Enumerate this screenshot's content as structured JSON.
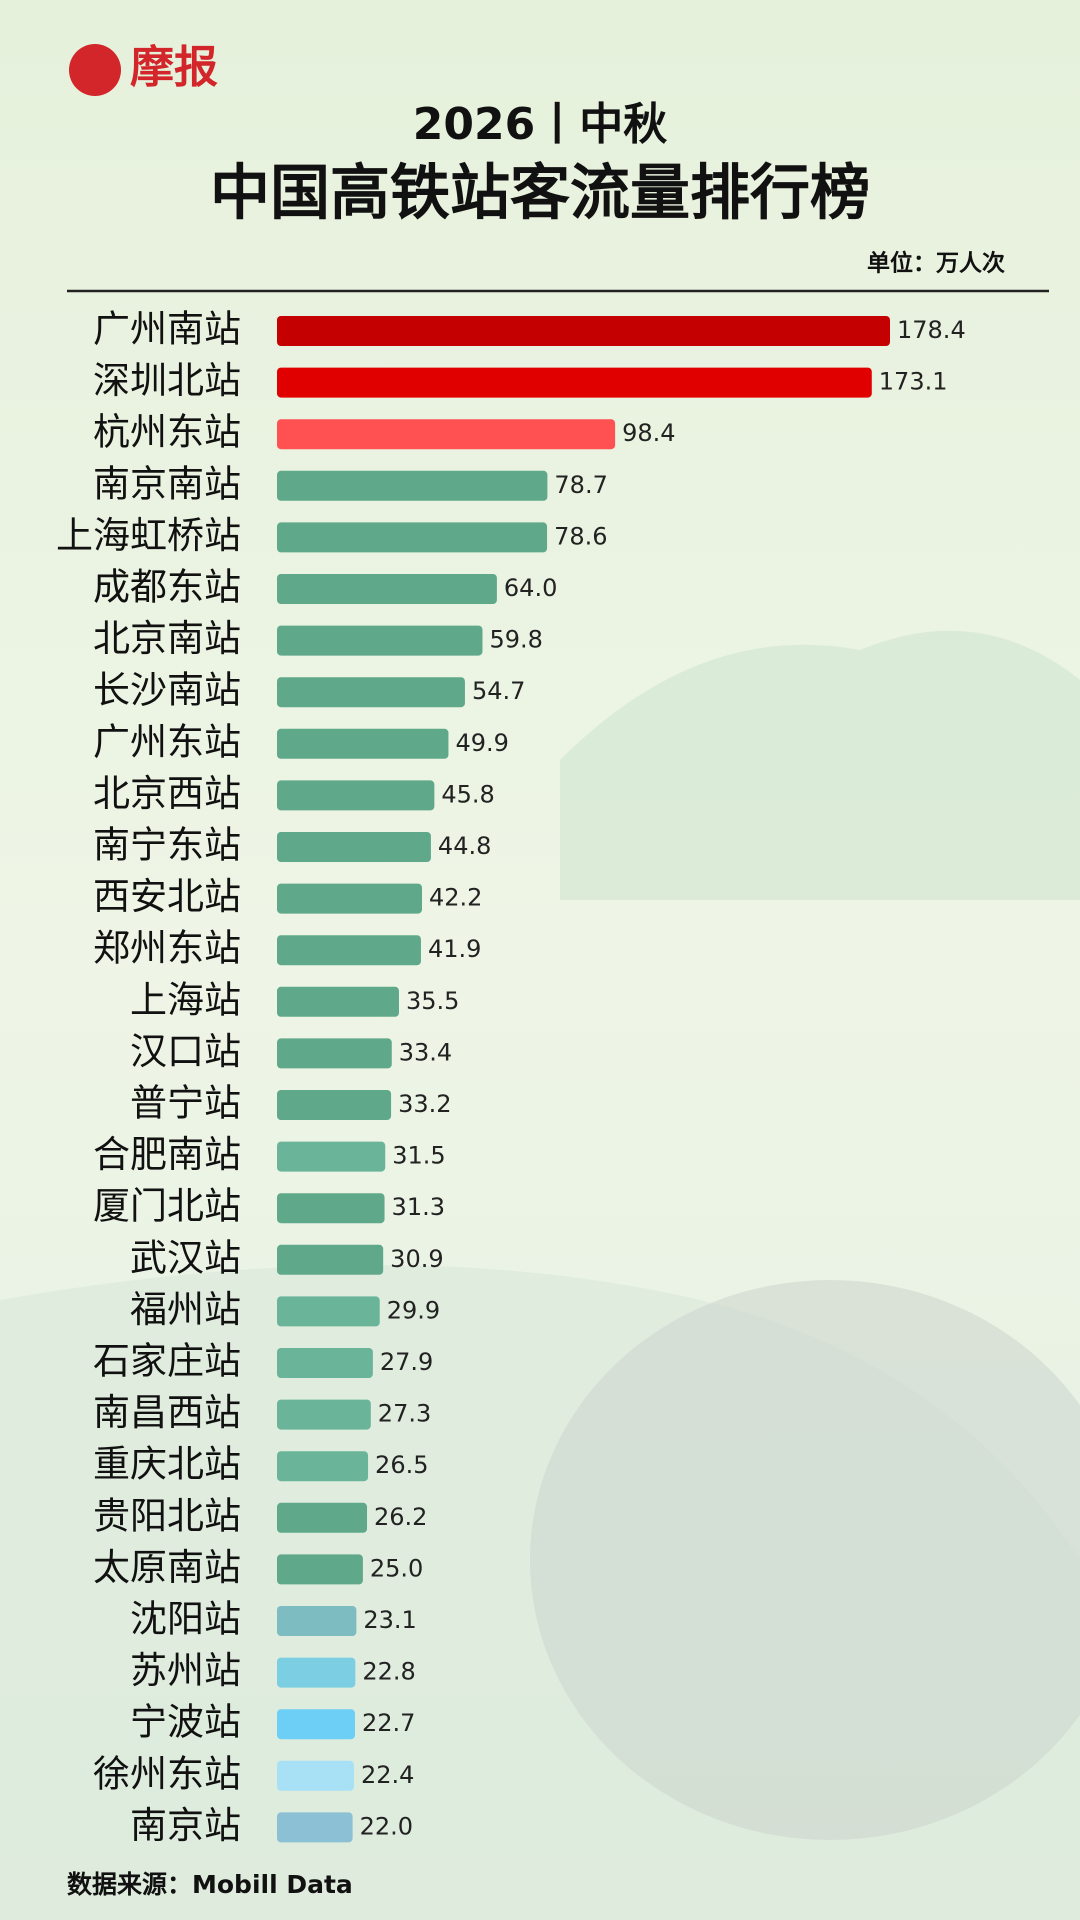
{
  "brand": "摩报",
  "chart_data": {
    "type": "bar",
    "orientation": "horizontal",
    "title": "2026丨中秋",
    "subtitle": "中国高铁站客流量排行榜",
    "unit": "单位：万人次",
    "source": "数据来源：Mobill Data",
    "categories": [
      "广州南站",
      "深圳北站",
      "杭州东站",
      "南京南站",
      "上海虹桥站",
      "成都东站",
      "北京南站",
      "长沙南站",
      "广州东站",
      "北京西站",
      "南宁东站",
      "西安北站",
      "郑州东站",
      "上海站",
      "汉口站",
      "普宁站",
      "合肥南站",
      "厦门北站",
      "武汉站",
      "福州站",
      "石家庄站",
      "南昌西站",
      "重庆北站",
      "贵阳北站",
      "太原南站",
      "沈阳站",
      "苏州站",
      "宁波站",
      "徐州东站",
      "南京站"
    ],
    "values": [
      178.4,
      173.1,
      98.4,
      78.7,
      78.6,
      64.0,
      59.8,
      54.7,
      49.9,
      45.8,
      44.8,
      42.2,
      41.9,
      35.5,
      33.4,
      33.2,
      31.5,
      31.3,
      30.9,
      29.9,
      27.9,
      27.3,
      26.5,
      26.2,
      25.0,
      23.1,
      22.8,
      22.7,
      22.4,
      22.0
    ],
    "value_labels": [
      "178.4",
      "173.1",
      "98.4",
      "78.7",
      "78.6",
      "64.0",
      "59.8",
      "54.7",
      "49.9",
      "45.8",
      "44.8",
      "42.2",
      "41.9",
      "35.5",
      "33.4",
      "33.2",
      "31.5",
      "31.3",
      "30.9",
      "29.9",
      "27.9",
      "27.3",
      "26.5",
      "26.2",
      "25.0",
      "23.1",
      "22.8",
      "22.7",
      "22.4",
      "22.0"
    ],
    "colors": [
      "#c40000",
      "#e00000",
      "#ff5052",
      "#5fa98a",
      "#5fa98a",
      "#5fa98a",
      "#5fa98a",
      "#5fa98a",
      "#5fa98a",
      "#5fa98a",
      "#5fa98a",
      "#5fa98a",
      "#5fa98a",
      "#5fa98a",
      "#5fa98a",
      "#5fa98a",
      "#6ab59a",
      "#5fa98a",
      "#5fa98a",
      "#6ab59a",
      "#6ab59a",
      "#6ab59a",
      "#6ab59a",
      "#5fa98a",
      "#5fa98a",
      "#7dbcc0",
      "#7ccfe2",
      "#6dcff6",
      "#a8e0f5",
      "#8cc0d4"
    ]
  }
}
